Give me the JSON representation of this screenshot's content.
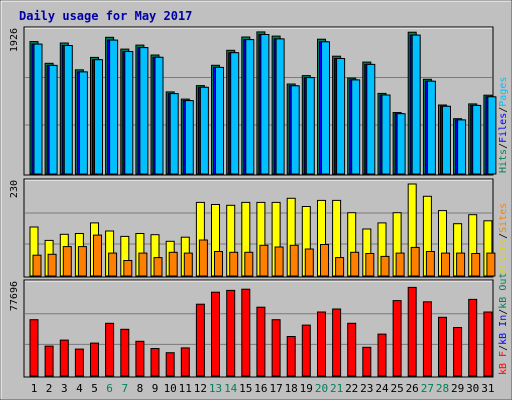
{
  "chart_data": {
    "type": "bar",
    "title": "Daily usage for May 2017",
    "categories": [
      "1",
      "2",
      "3",
      "4",
      "5",
      "6",
      "7",
      "8",
      "9",
      "10",
      "11",
      "12",
      "13",
      "14",
      "15",
      "16",
      "17",
      "18",
      "19",
      "20",
      "21",
      "22",
      "23",
      "24",
      "25",
      "26",
      "27",
      "28",
      "29",
      "30",
      "31"
    ],
    "weekend_days": [
      "6",
      "7",
      "13",
      "14",
      "20",
      "21",
      "27",
      "28"
    ],
    "panels": [
      {
        "name": "hits-files-pages",
        "max_label": "1926",
        "ylim": [
          0,
          1926
        ],
        "axis_label_parts": [
          {
            "text": "Hits",
            "color": "#00805c"
          },
          {
            "text": "/",
            "color": "#000000"
          },
          {
            "text": "Files",
            "color": "#0000ff"
          },
          {
            "text": "/",
            "color": "#000000"
          },
          {
            "text": "Pages",
            "color": "#00c0ff"
          }
        ],
        "series": [
          {
            "name": "Hits",
            "color": "#00805c",
            "values": [
              1771,
              1481,
              1752,
              1394,
              1560,
              1828,
              1671,
              1724,
              1592,
              1098,
              1002,
              1183,
              1454,
              1655,
              1833,
              1900,
              1844,
              1204,
              1316,
              1803,
              1576,
              1283,
              1496,
              1078,
              823,
              1896,
              1266,
              923,
              739,
              937,
              1054
            ]
          },
          {
            "name": "Files",
            "color": "#0000ff",
            "values": [
              1738,
              1452,
              1719,
              1366,
              1529,
              1791,
              1638,
              1691,
              1561,
              1075,
              982,
              1160,
              1426,
              1622,
              1797,
              1866,
              1807,
              1180,
              1290,
              1768,
              1545,
              1258,
              1466,
              1056,
              806,
              1858,
              1241,
              905,
              724,
              918,
              1033
            ]
          },
          {
            "name": "Pages",
            "color": "#00c0ff",
            "values": [
              1738,
              1452,
              1719,
              1366,
              1529,
              1791,
              1638,
              1691,
              1561,
              1075,
              982,
              1160,
              1426,
              1622,
              1797,
              1866,
              1807,
              1180,
              1290,
              1768,
              1545,
              1258,
              1466,
              1056,
              806,
              1858,
              1241,
              905,
              724,
              918,
              1033
            ]
          }
        ]
      },
      {
        "name": "visits-sites",
        "max_label": "230",
        "ylim": [
          0,
          230
        ],
        "axis_label_parts": [
          {
            "text": "Visits",
            "color": "#e0d000"
          },
          {
            "text": "/",
            "color": "#000000"
          },
          {
            "text": "Sites",
            "color": "#ff8000"
          }
        ],
        "series": [
          {
            "name": "Visits",
            "color": "#ffff00",
            "values": [
              120,
              87,
              102,
              104,
              130,
              110,
              97,
              104,
              101,
              85,
              95,
              180,
              175,
              173,
              180,
              180,
              180,
              190,
              170,
              185,
              185,
              155,
              115,
              130,
              155,
              225,
              195,
              160,
              128,
              150,
              135
            ]
          },
          {
            "name": "Sites",
            "color": "#ff8000",
            "values": [
              51,
              53,
              72,
              72,
              100,
              56,
              38,
              56,
              45,
              58,
              56,
              88,
              60,
              58,
              58,
              75,
              71,
              75,
              66,
              77,
              45,
              58,
              55,
              48,
              56,
              70,
              60,
              56,
              56,
              55,
              56
            ]
          }
        ]
      },
      {
        "name": "kbytes",
        "max_label": "77696",
        "ylim": [
          0,
          77696
        ],
        "axis_label_parts": [
          {
            "text": "kB F",
            "color": "#ff0000"
          },
          {
            "text": "/",
            "color": "#000000"
          },
          {
            "text": "kB In",
            "color": "#0000ff"
          },
          {
            "text": "/",
            "color": "#000000"
          },
          {
            "text": "kB Out",
            "color": "#00805c"
          }
        ],
        "series": [
          {
            "name": "kB F",
            "color": "#ff0000",
            "values": [
              47000,
              25000,
              30000,
              22500,
              27500,
              44000,
              39000,
              29000,
              23000,
              19500,
              23500,
              60000,
              70000,
              71500,
              72500,
              57500,
              47000,
              33000,
              42500,
              53500,
              56000,
              44000,
              24000,
              35000,
              63000,
              74000,
              62000,
              49000,
              40500,
              64000,
              53500
            ]
          }
        ]
      }
    ]
  }
}
